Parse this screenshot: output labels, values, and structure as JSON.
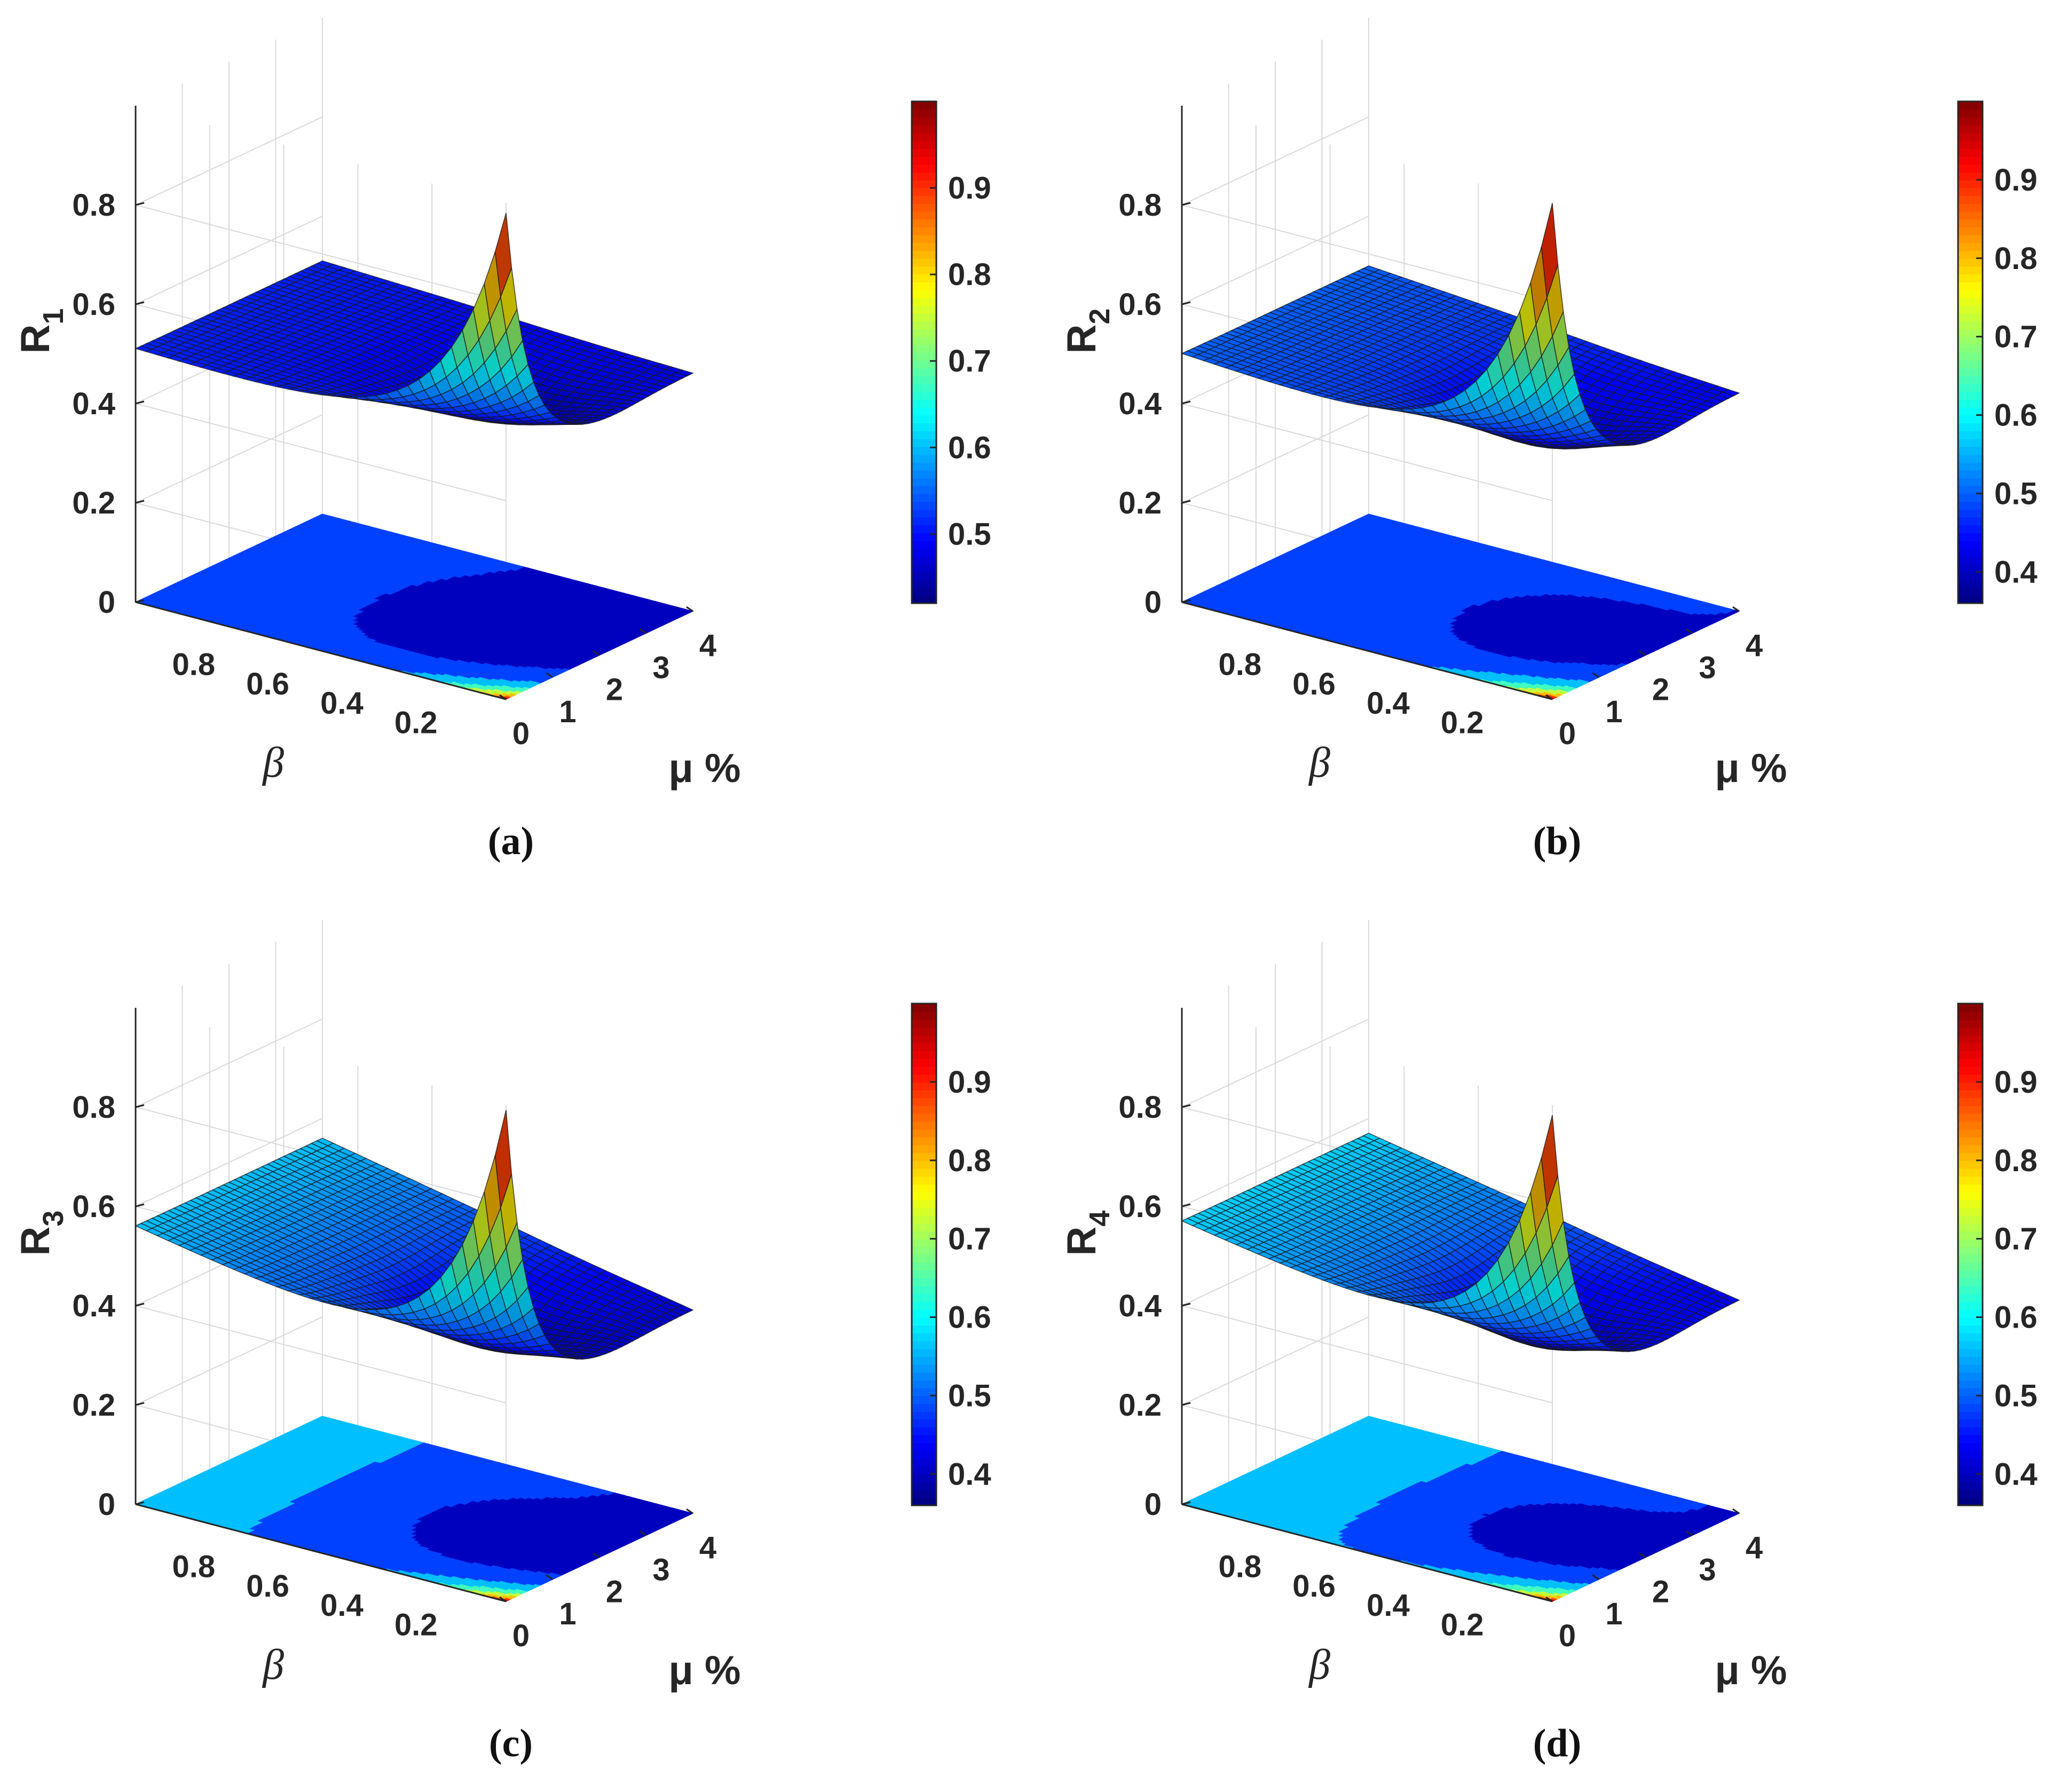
{
  "figure": {
    "panels": [
      {
        "id": "a",
        "caption": "(a)",
        "zlabel_main": "R",
        "zlabel_sub": "1"
      },
      {
        "id": "b",
        "caption": "(b)",
        "zlabel_main": "R",
        "zlabel_sub": "2"
      },
      {
        "id": "c",
        "caption": "(c)",
        "zlabel_main": "R",
        "zlabel_sub": "3"
      },
      {
        "id": "d",
        "caption": "(d)",
        "zlabel_main": "R",
        "zlabel_sub": "4"
      }
    ]
  },
  "chart_data": [
    {
      "panel": "a",
      "type": "surface",
      "title": "(a)",
      "xlabel": "μ %",
      "ylabel": "β",
      "zlabel": "R1",
      "xlim": [
        0,
        4
      ],
      "ylim": [
        0,
        1
      ],
      "zlim": [
        0,
        1
      ],
      "xticks": [
        "0",
        "1",
        "2",
        "3",
        "4"
      ],
      "yticks": [
        "0.2",
        "0.4",
        "0.6",
        "0.8"
      ],
      "zticks": [
        "0",
        "0.2",
        "0.4",
        "0.6",
        "0.8"
      ],
      "surface": {
        "peak_value": 0.98,
        "value_at_beta1_mu0": 0.51,
        "value_at_beta0_mu4": 0.48,
        "min_value": 0.42
      },
      "colorbar": {
        "limits": [
          0.42,
          1.0
        ],
        "ticks": [
          "0.5",
          "0.6",
          "0.7",
          "0.8",
          "0.9"
        ]
      }
    },
    {
      "panel": "b",
      "type": "surface",
      "title": "(b)",
      "xlabel": "μ %",
      "ylabel": "β",
      "zlabel": "R2",
      "xlim": [
        0,
        4
      ],
      "ylim": [
        0,
        1
      ],
      "zlim": [
        0,
        1
      ],
      "xticks": [
        "0",
        "1",
        "2",
        "3",
        "4"
      ],
      "yticks": [
        "0.2",
        "0.4",
        "0.6",
        "0.8"
      ],
      "zticks": [
        "0",
        "0.2",
        "0.4",
        "0.6",
        "0.8"
      ],
      "surface": {
        "peak_value": 1.0,
        "value_at_beta1_mu0": 0.5,
        "value_at_beta0_mu4": 0.44,
        "min_value": 0.36
      },
      "colorbar": {
        "limits": [
          0.36,
          1.0
        ],
        "ticks": [
          "0.4",
          "0.5",
          "0.6",
          "0.7",
          "0.8",
          "0.9"
        ]
      }
    },
    {
      "panel": "c",
      "type": "surface",
      "title": "(c)",
      "xlabel": "μ %",
      "ylabel": "β",
      "zlabel": "R3",
      "xlim": [
        0,
        4
      ],
      "ylim": [
        0,
        1
      ],
      "zlim": [
        0,
        1
      ],
      "xticks": [
        "0",
        "1",
        "2",
        "3",
        "4"
      ],
      "yticks": [
        "0.2",
        "0.4",
        "0.6",
        "0.8"
      ],
      "zticks": [
        "0",
        "0.2",
        "0.4",
        "0.6",
        "0.8"
      ],
      "surface": {
        "peak_value": 0.99,
        "value_at_beta1_mu0": 0.56,
        "value_at_beta0_mu4": 0.41,
        "min_value": 0.36
      },
      "colorbar": {
        "limits": [
          0.36,
          1.0
        ],
        "ticks": [
          "0.4",
          "0.5",
          "0.6",
          "0.7",
          "0.8",
          "0.9"
        ]
      }
    },
    {
      "panel": "d",
      "type": "surface",
      "title": "(d)",
      "xlabel": "μ %",
      "ylabel": "β",
      "zlabel": "R4",
      "xlim": [
        0,
        4
      ],
      "ylim": [
        0,
        1
      ],
      "zlim": [
        0,
        1
      ],
      "xticks": [
        "0",
        "1",
        "2",
        "3",
        "4"
      ],
      "yticks": [
        "0.2",
        "0.4",
        "0.6",
        "0.8"
      ],
      "zticks": [
        "0",
        "0.2",
        "0.4",
        "0.6",
        "0.8"
      ],
      "surface": {
        "peak_value": 0.98,
        "value_at_beta1_mu0": 0.57,
        "value_at_beta0_mu4": 0.43,
        "min_value": 0.36
      },
      "colorbar": {
        "limits": [
          0.36,
          1.0
        ],
        "ticks": [
          "0.4",
          "0.5",
          "0.6",
          "0.7",
          "0.8",
          "0.9"
        ]
      }
    }
  ]
}
